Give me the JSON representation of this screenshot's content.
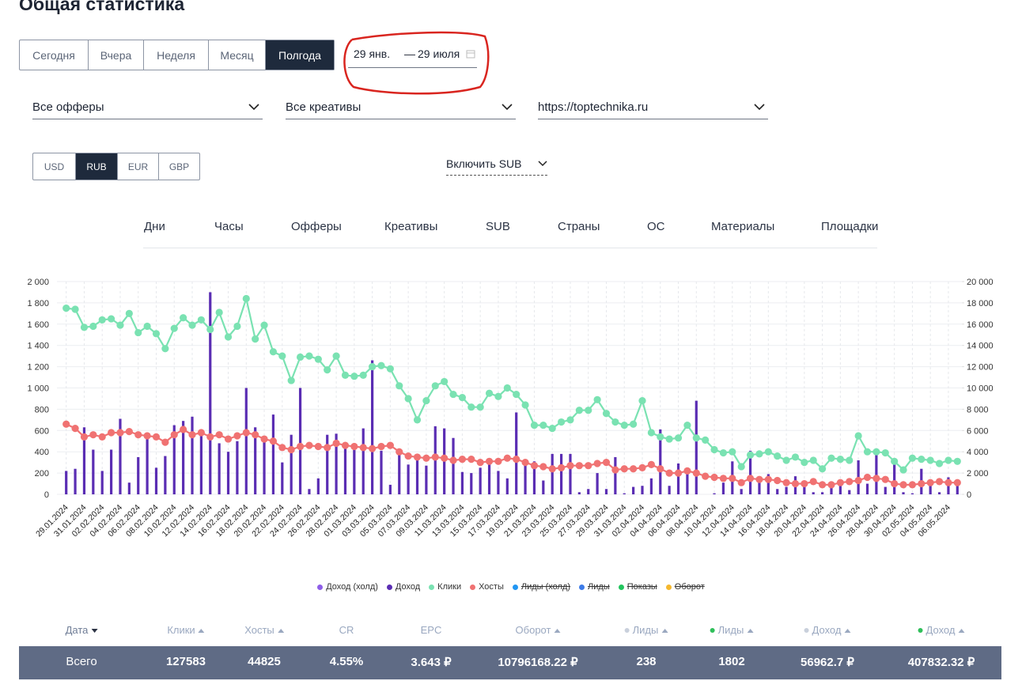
{
  "header": {
    "title": "Общая статистика"
  },
  "period_buttons": [
    "Сегодня",
    "Вчера",
    "Неделя",
    "Месяц",
    "Полгода"
  ],
  "active_period": 4,
  "date_range": {
    "from": "29 янв.",
    "separator": "—",
    "to": "29 июля"
  },
  "filters": [
    "Все офферы",
    "Все креативы",
    "https://toptechnika.ru"
  ],
  "currencies": [
    "USD",
    "RUB",
    "EUR",
    "GBP"
  ],
  "active_currency": 1,
  "sub_toggle": "Включить SUB",
  "tabs": [
    "Дни",
    "Часы",
    "Офферы",
    "Креативы",
    "SUB",
    "Страны",
    "ОС",
    "Материалы",
    "Площадки"
  ],
  "chart_data": {
    "type": "combo",
    "categories": [
      "29.01.2024",
      null,
      "31.01.2024",
      null,
      "02.02.2024",
      null,
      "04.02.2024",
      null,
      "06.02.2024",
      null,
      "08.02.2024",
      null,
      "10.02.2024",
      null,
      "12.02.2024",
      null,
      "14.02.2024",
      null,
      "16.02.2024",
      null,
      "18.02.2024",
      null,
      "20.02.2024",
      null,
      "22.02.2024",
      null,
      "24.02.2024",
      null,
      "26.02.2024",
      null,
      "28.02.2024",
      null,
      "01.03.2024",
      null,
      "03.03.2024",
      null,
      "05.03.2024",
      null,
      "07.03.2024",
      null,
      "09.03.2024",
      null,
      "11.03.2024",
      null,
      "13.03.2024",
      null,
      "15.03.2024",
      null,
      "17.03.2024",
      null,
      "19.03.2024",
      null,
      "21.03.2024",
      null,
      "23.03.2024",
      null,
      "25.03.2024",
      null,
      "27.03.2024",
      null,
      "29.03.2024",
      null,
      "31.03.2024",
      null,
      "02.04.2024",
      null,
      "04.04.2024",
      null,
      "06.04.2024",
      null,
      "08.04.2024",
      null,
      "10.04.2024",
      null,
      "12.04.2024",
      null,
      "14.04.2024",
      null,
      "16.04.2024",
      null,
      "18.04.2024",
      null,
      "20.04.2024",
      null,
      "22.04.2024",
      null,
      "24.04.2024",
      null,
      "26.04.2024",
      null,
      "28.04.2024",
      null,
      "30.04.2024",
      null,
      "02.05.2024",
      null,
      "04.05.2024",
      null,
      "06.05.2024",
      null
    ],
    "series": [
      {
        "name": "Доход",
        "kind": "bar",
        "axis": "y2",
        "color": "#5a2db3",
        "values": [
          2200,
          2400,
          6300,
          4200,
          2200,
          4200,
          7100,
          1100,
          3500,
          5600,
          2500,
          3600,
          6500,
          6900,
          7300,
          5800,
          19000,
          4800,
          4000,
          5000,
          10000,
          6300,
          5400,
          7500,
          3000,
          5600,
          10000,
          500,
          1500,
          5600,
          5700,
          4700,
          4200,
          6200,
          12600,
          4100,
          900,
          4000,
          2800,
          3400,
          2700,
          6400,
          6200,
          5300,
          2100,
          2000,
          2500,
          3200,
          2200,
          1500,
          7700,
          3000,
          3100,
          1300,
          3800,
          3800,
          3800,
          200,
          500,
          2000,
          500,
          3500,
          100,
          700,
          800,
          1500,
          6100,
          800,
          2900,
          2100,
          8800,
          0,
          100,
          1100,
          3100,
          500,
          4100,
          1600,
          1900,
          500,
          700,
          1700,
          1000,
          200,
          200,
          1200,
          1300,
          400,
          3200,
          1000,
          3900,
          700,
          3400,
          200,
          100,
          2400,
          1000,
          200,
          1600,
          1000
        ]
      },
      {
        "name": "Клики",
        "kind": "line",
        "color": "#7ae2b2",
        "values": [
          1750,
          1740,
          1570,
          1580,
          1640,
          1650,
          1590,
          1700,
          1520,
          1580,
          1510,
          1370,
          1560,
          1660,
          1590,
          1640,
          1550,
          1710,
          1480,
          1580,
          1840,
          1460,
          1590,
          1340,
          1300,
          1070,
          1290,
          1300,
          1270,
          1170,
          1300,
          1120,
          1110,
          1120,
          1200,
          1210,
          1180,
          1020,
          900,
          700,
          880,
          1020,
          1060,
          940,
          910,
          820,
          820,
          950,
          920,
          1000,
          940,
          840,
          650,
          650,
          620,
          680,
          700,
          790,
          790,
          890,
          760,
          680,
          650,
          660,
          880,
          580,
          540,
          520,
          530,
          650,
          530,
          510,
          420,
          390,
          400,
          260,
          370,
          380,
          400,
          360,
          320,
          350,
          300,
          320,
          240,
          340,
          330,
          320,
          550,
          400,
          400,
          390,
          310,
          230,
          340,
          330,
          320,
          290,
          320,
          310
        ]
      },
      {
        "name": "Хосты",
        "kind": "line",
        "color": "#f07272",
        "values": [
          660,
          620,
          540,
          560,
          540,
          580,
          580,
          590,
          560,
          550,
          540,
          490,
          560,
          610,
          560,
          580,
          540,
          560,
          520,
          550,
          580,
          560,
          520,
          500,
          440,
          420,
          450,
          460,
          450,
          440,
          480,
          460,
          450,
          440,
          430,
          450,
          460,
          400,
          360,
          350,
          340,
          350,
          340,
          320,
          330,
          330,
          300,
          310,
          310,
          340,
          330,
          300,
          270,
          260,
          240,
          250,
          270,
          270,
          270,
          290,
          300,
          230,
          240,
          240,
          250,
          280,
          240,
          200,
          200,
          220,
          200,
          170,
          160,
          150,
          150,
          110,
          150,
          140,
          140,
          130,
          110,
          100,
          100,
          120,
          90,
          90,
          110,
          120,
          130,
          160,
          150,
          140,
          100,
          90,
          90,
          100,
          110,
          120,
          110,
          110
        ]
      }
    ],
    "ylim": [
      0,
      2000
    ],
    "yticks": [
      0,
      200,
      400,
      600,
      800,
      {
        "value": 1000,
        "label": "1 000"
      },
      {
        "value": 1200,
        "label": "1 200"
      },
      {
        "value": 1400,
        "label": "1 400"
      },
      {
        "value": 1600,
        "label": "1 600"
      },
      {
        "value": 1800,
        "label": "1 800"
      },
      {
        "value": 2000,
        "label": "2 000"
      }
    ],
    "y2lim": [
      0,
      20000
    ],
    "y2ticks": [
      0,
      {
        "value": 2000,
        "label": "2 000"
      },
      {
        "value": 4000,
        "label": "4 000"
      },
      {
        "value": 6000,
        "label": "6 000"
      },
      {
        "value": 8000,
        "label": "8 000"
      },
      {
        "value": 10000,
        "label": "10 000"
      },
      {
        "value": 12000,
        "label": "12 000"
      },
      {
        "value": 14000,
        "label": "14 000"
      },
      {
        "value": 16000,
        "label": "16 000"
      },
      {
        "value": 18000,
        "label": "18 000"
      },
      {
        "value": 20000,
        "label": "20 000"
      }
    ],
    "grid": true,
    "legend_before": [
      {
        "name": "Доход (холд)",
        "color": "#8e5ee8",
        "hidden": false
      }
    ],
    "legend_after": [
      {
        "name": "Лиды (холд)",
        "color": "#2196f3",
        "hidden": true
      },
      {
        "name": "Лиды",
        "color": "#3d7be8",
        "hidden": true
      },
      {
        "name": "Показы",
        "color": "#22c55e",
        "hidden": true
      },
      {
        "name": "Оборот",
        "color": "#f5b82e",
        "hidden": true
      }
    ]
  },
  "table": {
    "columns": [
      "Дата",
      "Клики",
      "Хосты",
      "CR",
      "EPC",
      "Оборот",
      "Лиды",
      "Лиды",
      "Доход",
      "Доход"
    ],
    "total_row": [
      "Всего",
      "127583",
      "44825",
      "4.55%",
      "3.643 ₽",
      "10796168.22 ₽",
      "238",
      "1802",
      "56962.7 ₽",
      "407832.32 ₽"
    ]
  }
}
